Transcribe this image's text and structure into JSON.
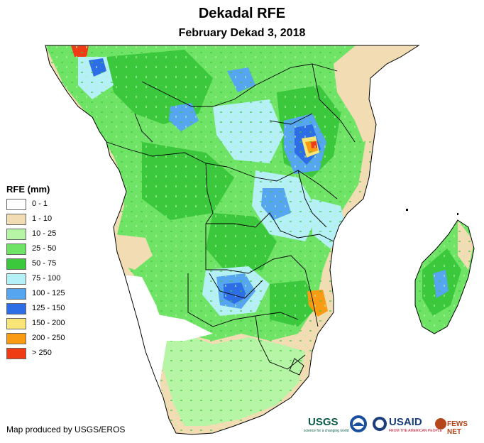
{
  "title": "Dekadal RFE",
  "subtitle": "February Dekad 3, 2018",
  "legend": {
    "title": "RFE (mm)",
    "items": [
      {
        "label": "0 - 1",
        "color": "#ffffff"
      },
      {
        "label": "1 - 10",
        "color": "#f2dcb4"
      },
      {
        "label": "10 - 25",
        "color": "#b6f5a6"
      },
      {
        "label": "25 - 50",
        "color": "#6ee365"
      },
      {
        "label": "50 - 75",
        "color": "#3cc83c"
      },
      {
        "label": "75 - 100",
        "color": "#b4f0f5"
      },
      {
        "label": "100 - 125",
        "color": "#55a5f0"
      },
      {
        "label": "125 - 150",
        "color": "#2d6ee6"
      },
      {
        "label": "150 - 200",
        "color": "#fae678"
      },
      {
        "label": "200 - 250",
        "color": "#fa9b14"
      },
      {
        "label": "> 250",
        "color": "#f03c14"
      }
    ]
  },
  "credit": "Map produced by USGS/EROS",
  "logos": {
    "usgs": "USGS",
    "usgs_tagline": "science for a changing world",
    "usaid": "USAID",
    "usaid_tagline": "FROM THE AMERICAN PEOPLE",
    "fewsnet": "FEWS NET"
  }
}
